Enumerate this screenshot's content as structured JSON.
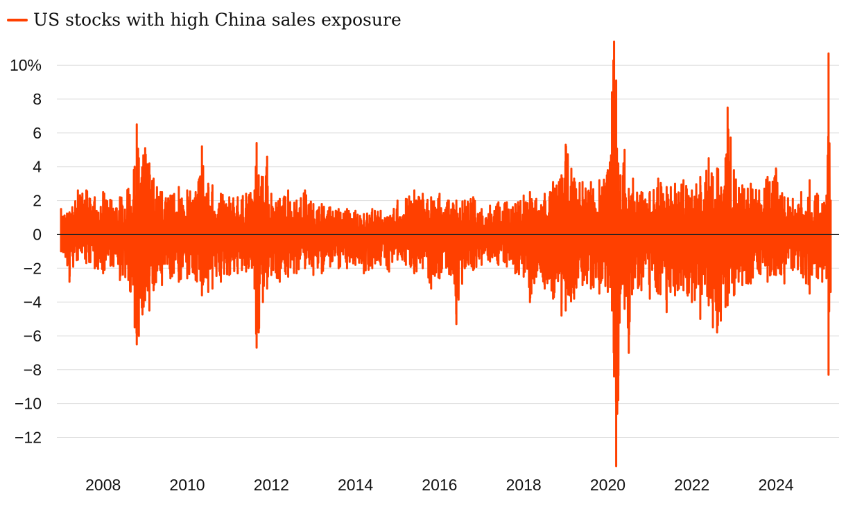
{
  "legend": {
    "label": "US stocks with high China sales exposure",
    "color": "#ff4000"
  },
  "chart_data": {
    "type": "line",
    "title": "",
    "xlabel": "",
    "ylabel": "",
    "unit": "%",
    "xlim": [
      2006.9,
      2025.5
    ],
    "ylim": [
      -13.7,
      11.4
    ],
    "y_ticks": [
      {
        "value": 10,
        "label": "10%"
      },
      {
        "value": 8,
        "label": "8"
      },
      {
        "value": 6,
        "label": "6"
      },
      {
        "value": 4,
        "label": "4"
      },
      {
        "value": 2,
        "label": "2"
      },
      {
        "value": 0,
        "label": "0"
      },
      {
        "value": -2,
        "label": "−2"
      },
      {
        "value": -4,
        "label": "−4"
      },
      {
        "value": -6,
        "label": "−6"
      },
      {
        "value": -8,
        "label": "−8"
      },
      {
        "value": -10,
        "label": "−10"
      },
      {
        "value": -12,
        "label": "−12"
      }
    ],
    "x_ticks": [
      {
        "value": 2008,
        "label": "2008"
      },
      {
        "value": 2010,
        "label": "2010"
      },
      {
        "value": 2012,
        "label": "2012"
      },
      {
        "value": 2014,
        "label": "2014"
      },
      {
        "value": 2016,
        "label": "2016"
      },
      {
        "value": 2018,
        "label": "2018"
      },
      {
        "value": 2020,
        "label": "2020"
      },
      {
        "value": 2022,
        "label": "2022"
      },
      {
        "value": 2024,
        "label": "2024"
      }
    ],
    "grid": true,
    "legend_position": "top-left",
    "series": [
      {
        "name": "US stocks with high China sales exposure",
        "color": "#ff4000",
        "x": [
          2007.0,
          2007.2,
          2007.4,
          2007.6,
          2007.8,
          2008.0,
          2008.2,
          2008.4,
          2008.6,
          2008.75,
          2008.8,
          2008.85,
          2009.0,
          2009.1,
          2009.2,
          2009.4,
          2009.6,
          2009.8,
          2010.0,
          2010.2,
          2010.35,
          2010.5,
          2010.6,
          2010.8,
          2011.0,
          2011.2,
          2011.4,
          2011.6,
          2011.65,
          2011.7,
          2011.8,
          2011.9,
          2012.0,
          2012.2,
          2012.4,
          2012.6,
          2012.8,
          2013.0,
          2013.2,
          2013.4,
          2013.6,
          2013.8,
          2014.0,
          2014.2,
          2014.4,
          2014.6,
          2014.8,
          2015.0,
          2015.2,
          2015.4,
          2015.6,
          2015.8,
          2016.0,
          2016.2,
          2016.4,
          2016.6,
          2016.8,
          2017.0,
          2017.2,
          2017.4,
          2017.6,
          2017.8,
          2018.0,
          2018.15,
          2018.3,
          2018.5,
          2018.7,
          2018.9,
          2019.0,
          2019.2,
          2019.4,
          2019.6,
          2019.8,
          2020.0,
          2020.1,
          2020.15,
          2020.2,
          2020.25,
          2020.3,
          2020.4,
          2020.5,
          2020.6,
          2020.8,
          2021.0,
          2021.2,
          2021.4,
          2021.6,
          2021.8,
          2022.0,
          2022.2,
          2022.4,
          2022.5,
          2022.6,
          2022.8,
          2022.85,
          2023.0,
          2023.2,
          2023.4,
          2023.6,
          2023.8,
          2024.0,
          2024.2,
          2024.4,
          2024.6,
          2024.8,
          2025.0,
          2025.1,
          2025.2,
          2025.25,
          2025.3
        ],
        "high": [
          1.5,
          1.3,
          2.6,
          2.6,
          2.2,
          2.5,
          2.0,
          2.2,
          2.7,
          4.0,
          6.5,
          4.5,
          5.1,
          4.2,
          3.3,
          2.5,
          2.3,
          2.8,
          2.6,
          2.5,
          5.2,
          3.0,
          2.9,
          2.4,
          2.2,
          2.2,
          2.4,
          2.6,
          5.4,
          3.5,
          3.4,
          4.6,
          2.4,
          2.1,
          2.6,
          2.0,
          2.6,
          1.8,
          1.8,
          1.6,
          1.5,
          1.5,
          1.4,
          1.2,
          1.5,
          1.4,
          1.0,
          2.0,
          2.1,
          2.6,
          2.4,
          2.2,
          2.4,
          2.0,
          2.0,
          2.0,
          2.2,
          1.5,
          1.7,
          1.9,
          1.9,
          1.8,
          2.3,
          2.5,
          2.1,
          2.4,
          3.1,
          3.5,
          5.3,
          3.3,
          3.1,
          3.1,
          3.2,
          3.8,
          8.4,
          11.4,
          9.1,
          4.2,
          3.5,
          5.0,
          2.7,
          3.3,
          2.5,
          2.5,
          3.3,
          2.8,
          3.0,
          3.2,
          2.6,
          3.4,
          4.5,
          3.4,
          3.9,
          4.5,
          7.5,
          3.8,
          2.9,
          3.0,
          2.6,
          3.4,
          3.9,
          2.2,
          2.1,
          2.5,
          3.2,
          2.3,
          1.8,
          2.3,
          10.7,
          2.0
        ],
        "low": [
          -1.0,
          -2.8,
          -1.5,
          -1.7,
          -2.0,
          -2.3,
          -1.8,
          -2.7,
          -2.7,
          -5.5,
          -6.5,
          -6.0,
          -3.9,
          -4.5,
          -3.3,
          -3.0,
          -2.6,
          -2.8,
          -2.6,
          -2.7,
          -3.6,
          -3.4,
          -3.2,
          -2.8,
          -2.4,
          -2.3,
          -2.2,
          -3.2,
          -6.7,
          -5.8,
          -4.0,
          -3.2,
          -2.4,
          -2.8,
          -2.5,
          -2.3,
          -2.0,
          -2.4,
          -2.3,
          -1.9,
          -2.0,
          -2.0,
          -1.8,
          -2.3,
          -2.0,
          -1.8,
          -2.2,
          -1.5,
          -1.8,
          -2.3,
          -2.0,
          -3.2,
          -2.6,
          -1.9,
          -5.3,
          -2.0,
          -2.1,
          -1.8,
          -1.6,
          -1.8,
          -1.9,
          -2.3,
          -2.5,
          -4.0,
          -2.5,
          -3.2,
          -3.8,
          -4.8,
          -4.5,
          -3.8,
          -3.0,
          -3.2,
          -3.5,
          -3.4,
          -4.5,
          -8.4,
          -13.7,
          -9.8,
          -3.5,
          -4.4,
          -7.0,
          -3.2,
          -3.3,
          -3.8,
          -3.5,
          -4.6,
          -3.6,
          -3.3,
          -4.0,
          -5.0,
          -4.2,
          -5.5,
          -5.8,
          -4.3,
          -4.2,
          -3.6,
          -3.0,
          -2.9,
          -2.3,
          -2.8,
          -2.4,
          -2.9,
          -2.1,
          -2.3,
          -3.5,
          -2.6,
          -2.8,
          -2.6,
          -8.3,
          -3.4
        ]
      }
    ]
  }
}
